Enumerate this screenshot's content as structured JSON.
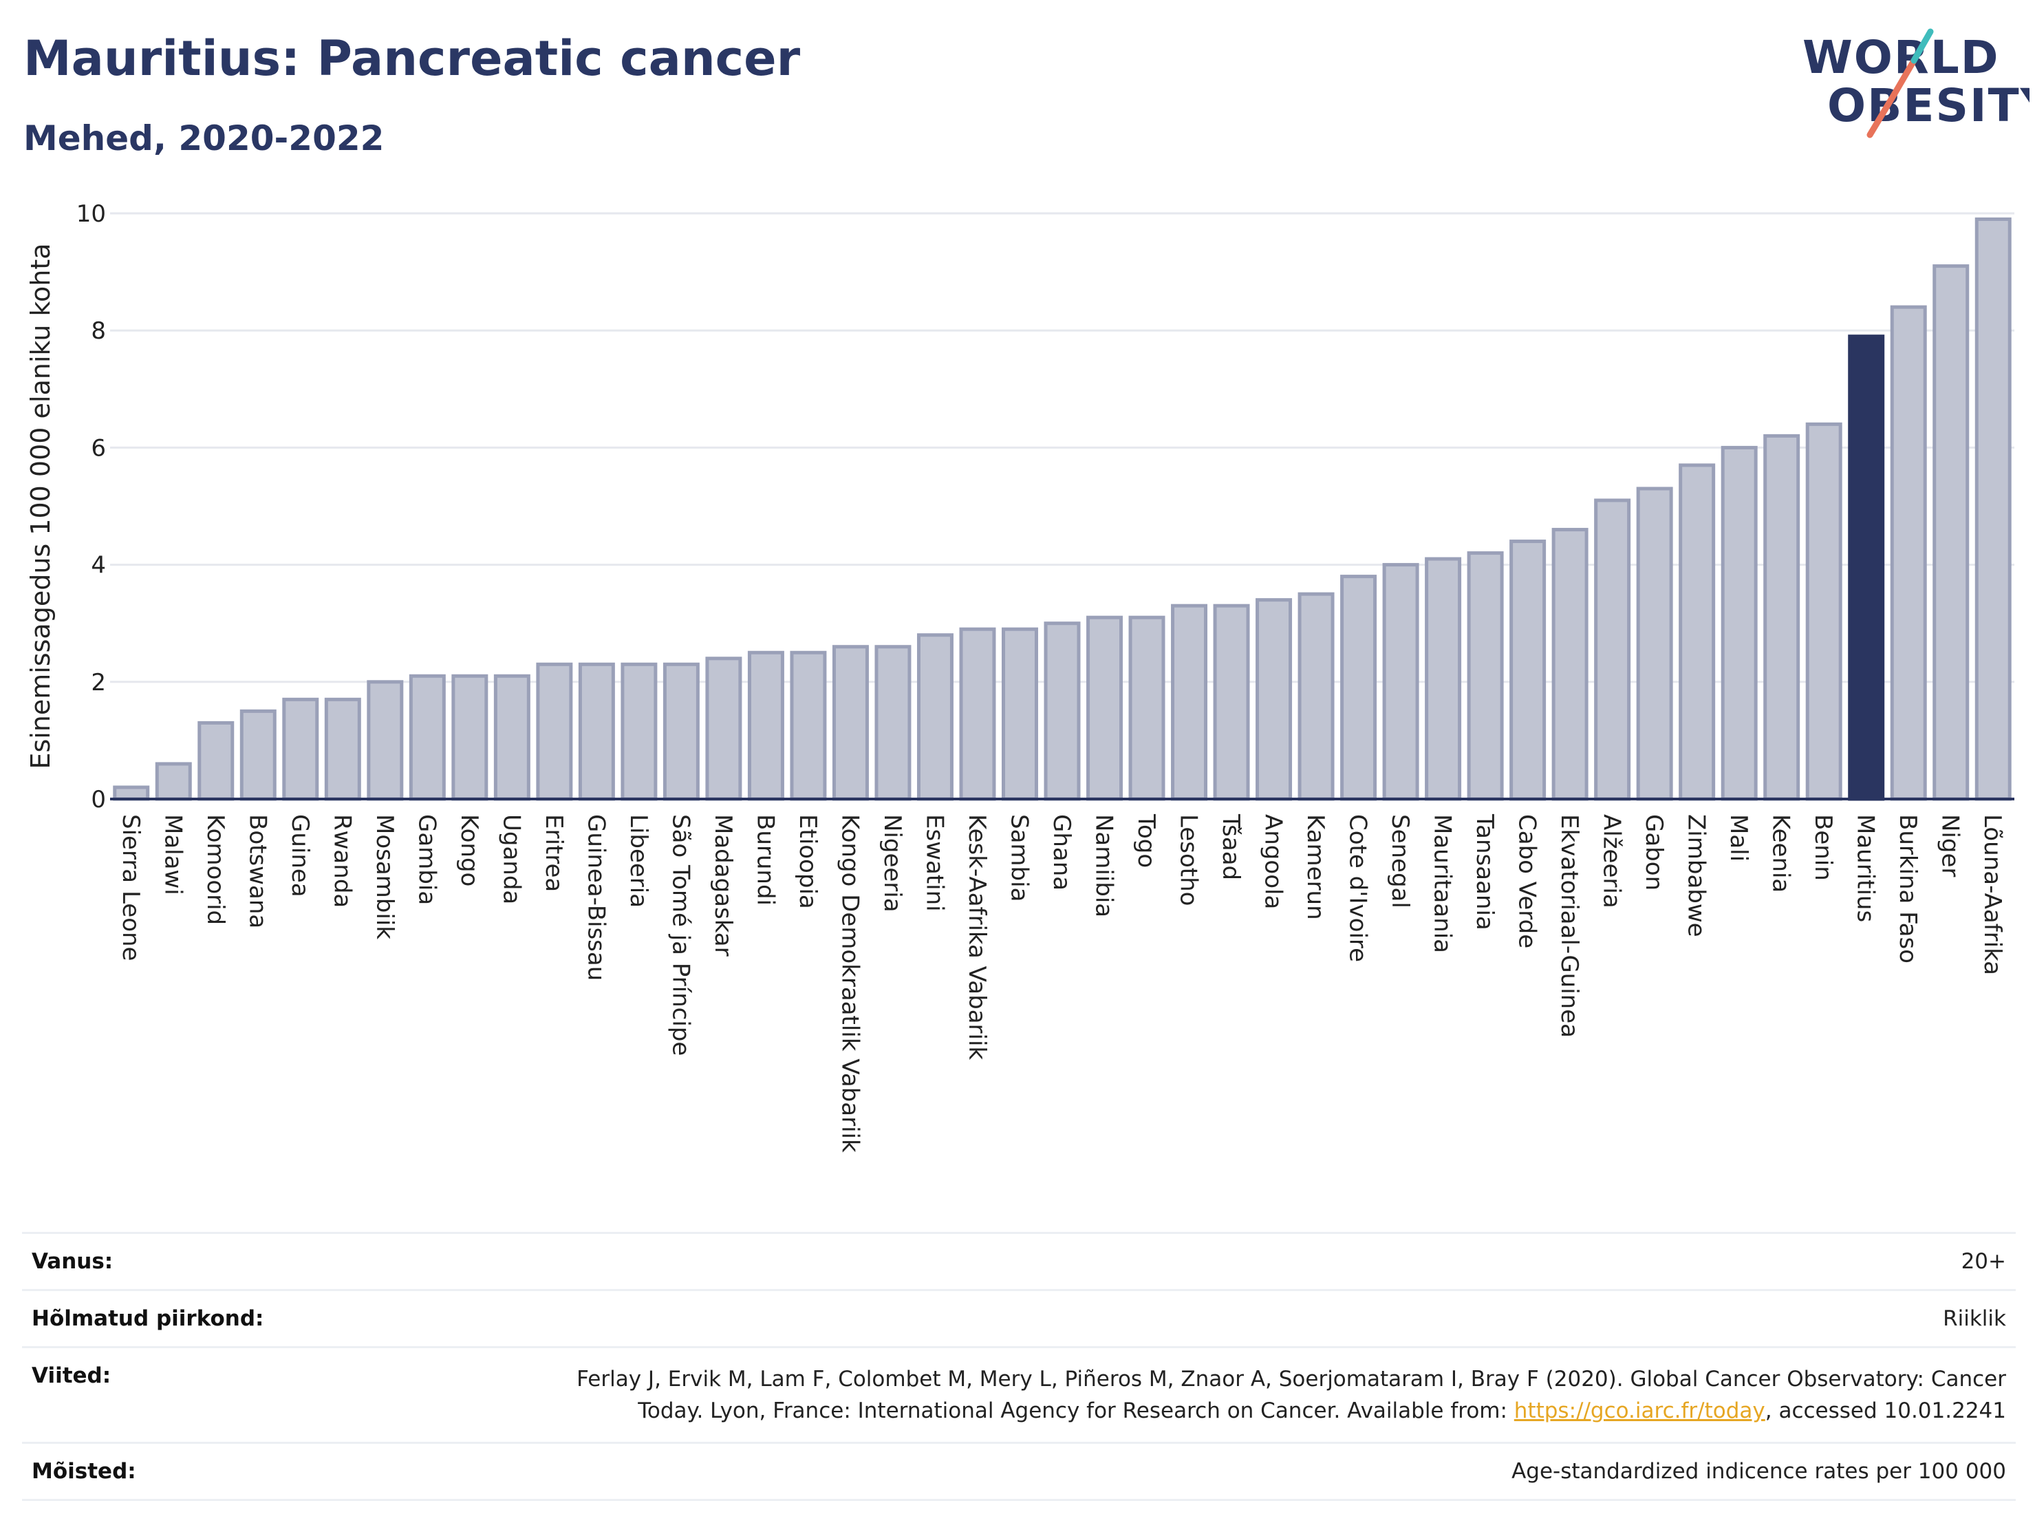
{
  "header": {
    "title": "Mauritius: Pancreatic cancer",
    "subtitle": "Mehed, 2020-2022"
  },
  "logo": {
    "line1": "WORLD",
    "line2": "OBESITY"
  },
  "chart_data": {
    "type": "bar",
    "ylabel": "Esinemissagedus 100 000 elaniku kohta",
    "ylim": [
      0,
      10
    ],
    "yticks": [
      0,
      2,
      4,
      6,
      8,
      10
    ],
    "grid": true,
    "highlight": "Mauritius",
    "colors": {
      "bar": "#c0c4d2",
      "bar_edge": "#9aa0b8",
      "highlight": "#2a3560",
      "grid": "#e6e8ee",
      "axis": "#2a3560"
    },
    "categories": [
      "Sierra Leone",
      "Malawi",
      "Komoorid",
      "Botswana",
      "Guinea",
      "Rwanda",
      "Mosambiik",
      "Gambia",
      "Kongo",
      "Uganda",
      "Eritrea",
      "Guinea-Bissau",
      "Libeeria",
      "São Tomé ja Príncipe",
      "Madagaskar",
      "Burundi",
      "Etioopia",
      "Kongo Demokraatlik Vabariik",
      "Nigeeria",
      "Eswatini",
      "Kesk-Aafrika Vabariik",
      "Sambia",
      "Ghana",
      "Namiibia",
      "Togo",
      "Lesotho",
      "Tšaad",
      "Angoola",
      "Kamerun",
      "Cote d'Ivoire",
      "Senegal",
      "Mauritaania",
      "Tansaania",
      "Cabo Verde",
      "Ekvatoriaal-Guinea",
      "Alžeeria",
      "Gabon",
      "Zimbabwe",
      "Mali",
      "Keenia",
      "Benin",
      "Mauritius",
      "Burkina Faso",
      "Niger",
      "Lõuna-Aafrika"
    ],
    "values": [
      0.2,
      0.6,
      1.3,
      1.5,
      1.7,
      1.7,
      2.0,
      2.1,
      2.1,
      2.1,
      2.3,
      2.3,
      2.3,
      2.3,
      2.4,
      2.5,
      2.5,
      2.6,
      2.6,
      2.8,
      2.9,
      2.9,
      3.0,
      3.1,
      3.1,
      3.3,
      3.3,
      3.4,
      3.5,
      3.8,
      4.0,
      4.1,
      4.2,
      4.4,
      4.6,
      5.1,
      5.3,
      5.7,
      6.0,
      6.2,
      6.4,
      7.9,
      8.4,
      9.1,
      9.9
    ]
  },
  "meta": {
    "age_label": "Vanus:",
    "age_value": "20+",
    "region_label": "Hõlmatud piirkond:",
    "region_value": "Riiklik",
    "refs_label": "Viited:",
    "refs_line1": "Ferlay J, Ervik M, Lam F, Colombet M, Mery L, Piñeros M, Znaor A, Soerjomataram I, Bray F (2020). Global Cancer Observatory: Cancer",
    "refs_line2_pre": "Today. Lyon, France: International Agency for Research on Cancer. Available from: ",
    "refs_link": "https://gco.iarc.fr/today",
    "refs_line2_post": ", accessed 10.01.2241",
    "def_label": "Mõisted:",
    "def_value": "Age-standardized indicence rates per 100 000"
  }
}
